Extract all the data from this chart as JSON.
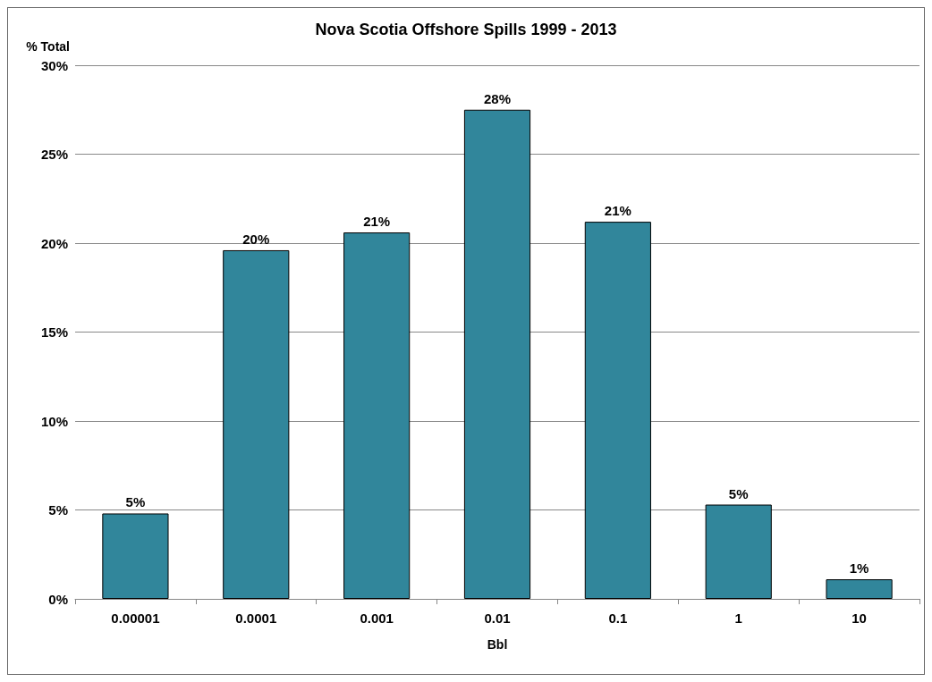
{
  "chart_data": {
    "type": "bar",
    "title": "Nova Scotia Offshore Spills 1999 - 2013",
    "xlabel": "Bbl",
    "ylabel": "% Total",
    "categories": [
      "0.00001",
      "0.0001",
      "0.001",
      "0.01",
      "0.1",
      "1",
      "10"
    ],
    "values": [
      4.8,
      19.6,
      20.6,
      27.5,
      21.2,
      5.3,
      1.1
    ],
    "value_labels": [
      "5%",
      "20%",
      "21%",
      "28%",
      "21%",
      "5%",
      "1%"
    ],
    "color": "#31869b",
    "ylim": [
      0,
      30
    ],
    "yticks": [
      {
        "value": 0,
        "label": "0%"
      },
      {
        "value": 5,
        "label": "5%"
      },
      {
        "value": 10,
        "label": "10%"
      },
      {
        "value": 15,
        "label": "15%"
      },
      {
        "value": 20,
        "label": "20%"
      },
      {
        "value": 25,
        "label": "25%"
      },
      {
        "value": 30,
        "label": "30%"
      }
    ],
    "grid": "y"
  }
}
